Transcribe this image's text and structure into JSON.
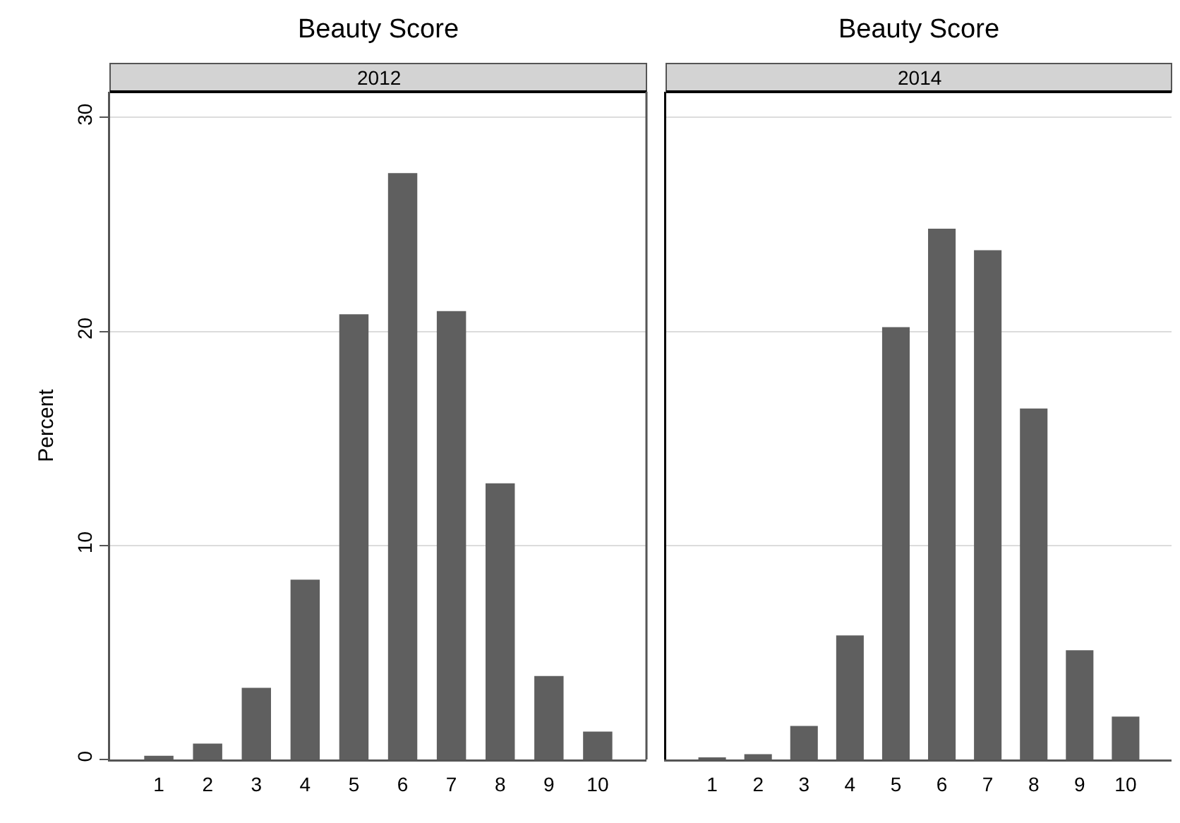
{
  "chart_data": [
    {
      "type": "bar",
      "title": "Beauty Score",
      "subtitle": "2012",
      "ylabel": "Percent",
      "categories": [
        "1",
        "2",
        "3",
        "4",
        "5",
        "6",
        "7",
        "8",
        "9",
        "10"
      ],
      "color": "#5f5f5f",
      "values": [
        0.17,
        0.74,
        3.35,
        8.4,
        20.8,
        27.4,
        20.95,
        12.9,
        3.9,
        1.3
      ],
      "ylim": [
        0,
        31.2
      ],
      "yticks": [
        0,
        10,
        20,
        30
      ],
      "grid": "y"
    },
    {
      "type": "bar",
      "title": "Beauty Score",
      "subtitle": "2014",
      "categories": [
        "1",
        "2",
        "3",
        "4",
        "5",
        "6",
        "7",
        "8",
        "9",
        "10"
      ],
      "color": "#5f5f5f",
      "values": [
        0.1,
        0.25,
        1.57,
        5.8,
        20.2,
        24.8,
        23.8,
        16.4,
        5.1,
        2.0
      ],
      "ylim": [
        0,
        31.2
      ],
      "yticks": [
        0,
        10,
        20,
        30
      ],
      "grid": "y",
      "tick_labels": "x"
    }
  ]
}
